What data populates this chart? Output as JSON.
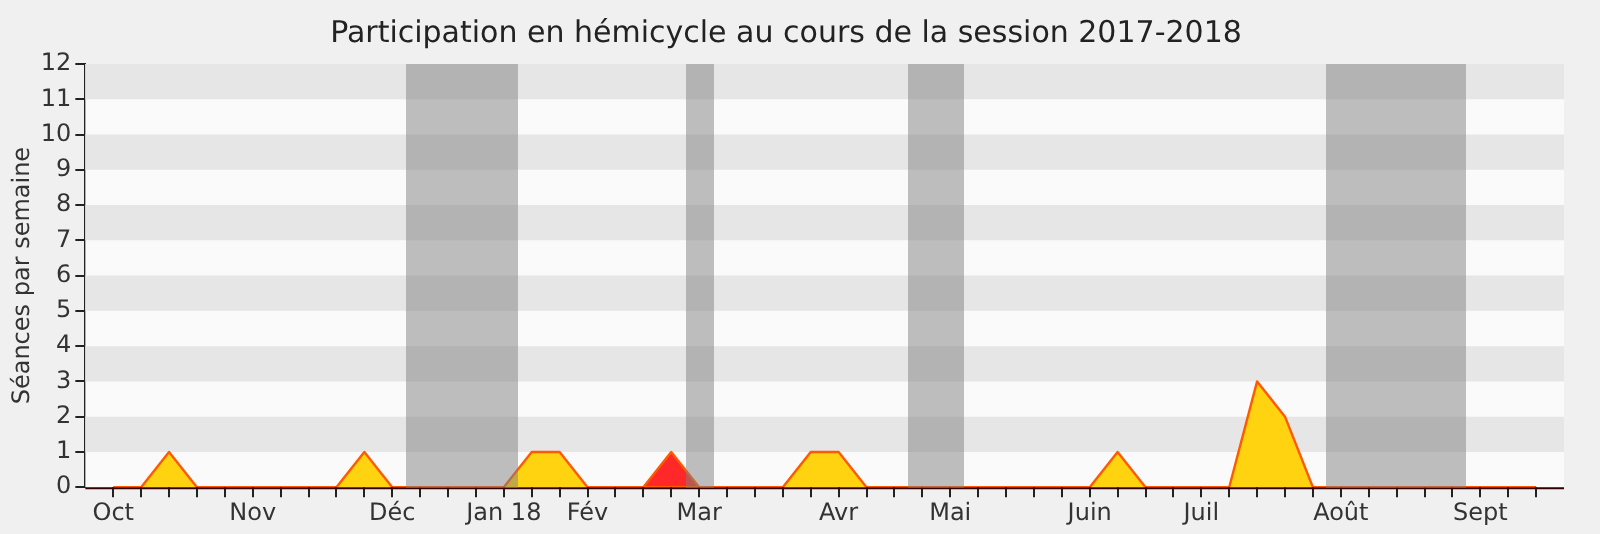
{
  "chart_data": {
    "type": "area",
    "title": "Participation en hémicycle au cours de la session 2017-2018",
    "ylabel": "Séances par semaine",
    "categories": [
      "Oct",
      null,
      null,
      null,
      null,
      "Nov",
      null,
      null,
      null,
      null,
      "Déc",
      null,
      null,
      null,
      "Jan 18",
      null,
      null,
      "Fév",
      null,
      null,
      null,
      "Mar",
      null,
      null,
      null,
      null,
      "Avr",
      null,
      null,
      null,
      "Mai",
      null,
      null,
      null,
      null,
      "Juin",
      null,
      null,
      null,
      "Juil",
      null,
      null,
      null,
      null,
      "Août",
      null,
      null,
      null,
      null,
      "Sept",
      null,
      null
    ],
    "series": [
      {
        "color": "#ffd30f",
        "values": [
          0,
          0,
          1,
          0,
          0,
          0,
          0,
          0,
          0,
          1,
          0,
          0,
          0,
          0,
          0,
          1,
          1,
          0,
          0,
          0,
          0,
          0,
          0,
          0,
          0,
          1,
          1,
          0,
          0,
          0,
          0,
          0,
          0,
          0,
          0,
          0,
          1,
          0,
          0,
          0,
          0,
          3,
          2,
          0,
          0,
          0,
          0,
          0,
          0,
          0,
          0,
          0
        ]
      },
      {
        "color": "#ff2828",
        "values": [
          null,
          null,
          null,
          null,
          null,
          null,
          null,
          null,
          null,
          null,
          null,
          null,
          null,
          null,
          null,
          null,
          null,
          null,
          null,
          0,
          1,
          0,
          null,
          null,
          null,
          null,
          null,
          null,
          null,
          null,
          null,
          null,
          null,
          null,
          null,
          null,
          null,
          null,
          null,
          null,
          null,
          null,
          null,
          null,
          null,
          null,
          null,
          null,
          null,
          null,
          null,
          null
        ]
      }
    ],
    "ylim": [
      0,
      12
    ],
    "yticks": [
      0,
      1,
      2,
      3,
      4,
      5,
      6,
      7,
      8,
      9,
      10,
      11,
      12
    ],
    "legend": false,
    "marker": "none"
  }
}
